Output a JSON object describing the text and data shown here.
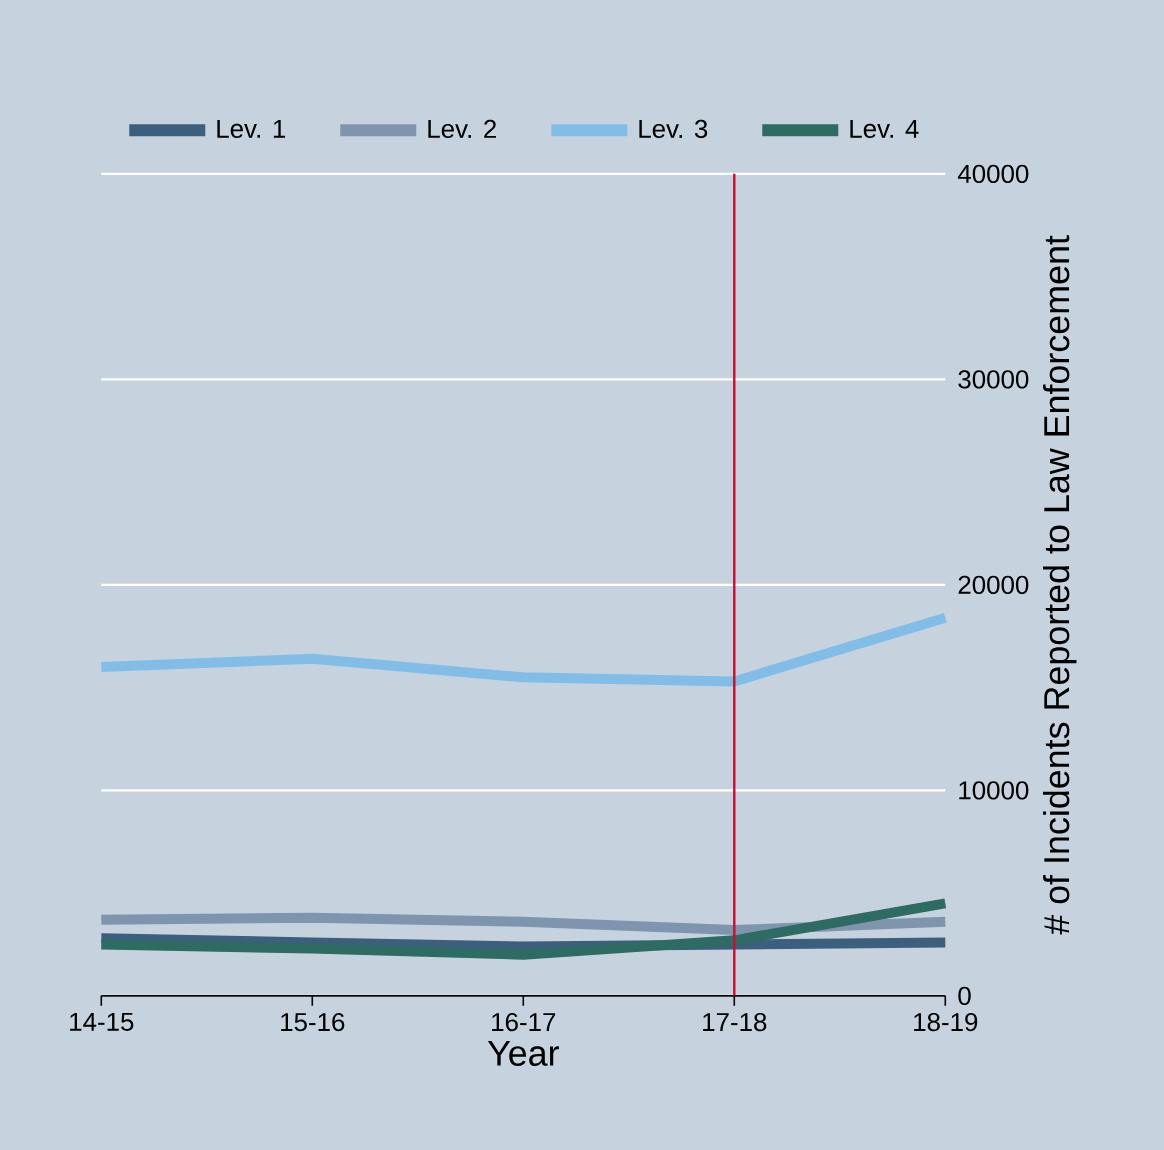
{
  "chart_data": {
    "type": "line",
    "xlabel": "Year",
    "ylabel": "# of Incidents Reported to Law Enforcement",
    "categories": [
      "14-15",
      "15-16",
      "16-17",
      "17-18",
      "18-19"
    ],
    "series": [
      {
        "name": "Lev. 1",
        "color": "#3d5f7e",
        "values": [
          2800,
          2600,
          2400,
          2500,
          2600
        ]
      },
      {
        "name": "Lev. 2",
        "color": "#7f94ad",
        "values": [
          3700,
          3800,
          3600,
          3200,
          3600
        ]
      },
      {
        "name": "Lev. 3",
        "color": "#82bde8",
        "values": [
          16000,
          16400,
          15500,
          15300,
          18400
        ]
      },
      {
        "name": "Lev. 4",
        "color": "#2e6b62",
        "values": [
          2500,
          2300,
          2000,
          2700,
          4500
        ]
      }
    ],
    "ylim": [
      0,
      40000
    ],
    "yticks": [
      0,
      10000,
      20000,
      30000,
      40000
    ],
    "ref_lines": [
      {
        "axis": "x",
        "value": "17-18",
        "color": "#c8102e"
      }
    ],
    "grid": "y",
    "legend": "top",
    "line_style": "solid",
    "marker": "none"
  }
}
